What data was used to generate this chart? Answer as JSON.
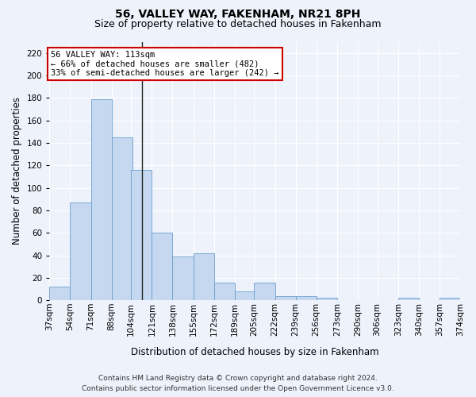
{
  "title": "56, VALLEY WAY, FAKENHAM, NR21 8PH",
  "subtitle": "Size of property relative to detached houses in Fakenham",
  "xlabel": "Distribution of detached houses by size in Fakenham",
  "ylabel": "Number of detached properties",
  "bar_values": [
    12,
    87,
    179,
    145,
    116,
    60,
    39,
    42,
    16,
    8,
    16,
    4,
    4,
    2,
    0,
    0,
    0,
    2,
    0,
    2
  ],
  "bin_left_edges": [
    37,
    54,
    71,
    88,
    104,
    121,
    138,
    155,
    172,
    189,
    205,
    222,
    239,
    256,
    273,
    290,
    306,
    323,
    340,
    357
  ],
  "bin_labels": [
    "37sqm",
    "54sqm",
    "71sqm",
    "88sqm",
    "104sqm",
    "121sqm",
    "138sqm",
    "155sqm",
    "172sqm",
    "189sqm",
    "205sqm",
    "222sqm",
    "239sqm",
    "256sqm",
    "273sqm",
    "290sqm",
    "306sqm",
    "323sqm",
    "340sqm",
    "357sqm",
    "374sqm"
  ],
  "bar_color": "#c5d8f0",
  "bar_edgecolor": "#6b9fcf",
  "subject_value": 113,
  "annotation_title": "56 VALLEY WAY: 113sqm",
  "annotation_line1": "← 66% of detached houses are smaller (482)",
  "annotation_line2": "33% of semi-detached houses are larger (242) →",
  "annotation_box_facecolor": "#ffffff",
  "annotation_box_edgecolor": "#cc0000",
  "ylim_max": 230,
  "yticks": [
    0,
    20,
    40,
    60,
    80,
    100,
    120,
    140,
    160,
    180,
    200,
    220
  ],
  "footer_line1": "Contains HM Land Registry data © Crown copyright and database right 2024.",
  "footer_line2": "Contains public sector information licensed under the Open Government Licence v3.0.",
  "bg_color": "#eef2fb",
  "grid_color": "#ffffff",
  "title_fontsize": 10,
  "subtitle_fontsize": 9,
  "axis_label_fontsize": 8.5,
  "tick_fontsize": 7.5,
  "annotation_fontsize": 7.5,
  "footer_fontsize": 6.5
}
